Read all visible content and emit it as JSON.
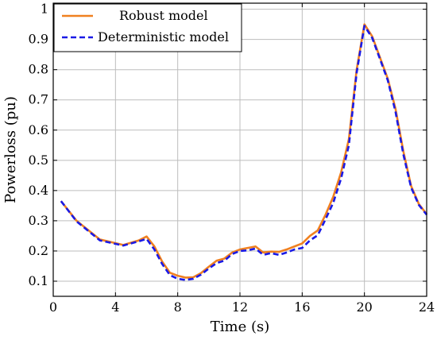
{
  "chart_data": {
    "type": "line",
    "xlabel": "Time (s)",
    "ylabel": "Powerloss (pu)",
    "xlim": [
      0,
      24
    ],
    "ylim": [
      0.05,
      1.02
    ],
    "xticks": [
      0,
      4,
      8,
      12,
      16,
      20,
      24
    ],
    "yticks": [
      0.1,
      0.2,
      0.3,
      0.4,
      0.5,
      0.6,
      0.7,
      0.8,
      0.9,
      1
    ],
    "grid": true,
    "legend_position": "top-left",
    "series": [
      {
        "name": "Robust model",
        "color": "#f08020",
        "style": "solid",
        "x": [
          0.5,
          1.5,
          3.0,
          4.5,
          5.5,
          6.0,
          6.5,
          7.0,
          7.5,
          8.0,
          8.5,
          9.0,
          9.5,
          10.0,
          10.5,
          11.0,
          11.5,
          12.0,
          12.5,
          13.0,
          13.5,
          14.0,
          14.5,
          15.0,
          15.5,
          16.0,
          16.5,
          17.0,
          17.5,
          18.0,
          18.5,
          19.0,
          19.5,
          20.0,
          20.5,
          21.0,
          21.5,
          22.0,
          22.5,
          23.0,
          23.5,
          24.0
        ],
        "y": [
          0.365,
          0.3,
          0.238,
          0.22,
          0.235,
          0.248,
          0.215,
          0.165,
          0.128,
          0.118,
          0.112,
          0.113,
          0.127,
          0.148,
          0.168,
          0.175,
          0.195,
          0.205,
          0.21,
          0.215,
          0.195,
          0.198,
          0.197,
          0.205,
          0.215,
          0.225,
          0.25,
          0.268,
          0.32,
          0.38,
          0.46,
          0.57,
          0.8,
          0.95,
          0.91,
          0.84,
          0.77,
          0.67,
          0.53,
          0.415,
          0.355,
          0.322
        ]
      },
      {
        "name": "Deterministic model",
        "color": "#1a1ae6",
        "style": "dashed",
        "x": [
          0.5,
          1.5,
          3.0,
          4.5,
          5.5,
          6.0,
          6.5,
          7.0,
          7.5,
          8.0,
          8.5,
          9.0,
          9.5,
          10.0,
          10.5,
          11.0,
          11.5,
          12.0,
          12.5,
          13.0,
          13.5,
          14.0,
          14.5,
          15.0,
          15.5,
          16.0,
          16.5,
          17.0,
          17.5,
          18.0,
          18.5,
          19.0,
          19.5,
          20.0,
          20.5,
          21.0,
          21.5,
          22.0,
          22.5,
          23.0,
          23.5,
          24.0
        ],
        "y": [
          0.365,
          0.298,
          0.235,
          0.218,
          0.232,
          0.24,
          0.205,
          0.157,
          0.12,
          0.108,
          0.104,
          0.108,
          0.122,
          0.142,
          0.16,
          0.168,
          0.19,
          0.2,
          0.202,
          0.208,
          0.187,
          0.193,
          0.187,
          0.195,
          0.205,
          0.21,
          0.235,
          0.252,
          0.305,
          0.36,
          0.44,
          0.55,
          0.79,
          0.945,
          0.905,
          0.835,
          0.765,
          0.66,
          0.52,
          0.41,
          0.352,
          0.32
        ]
      }
    ]
  }
}
